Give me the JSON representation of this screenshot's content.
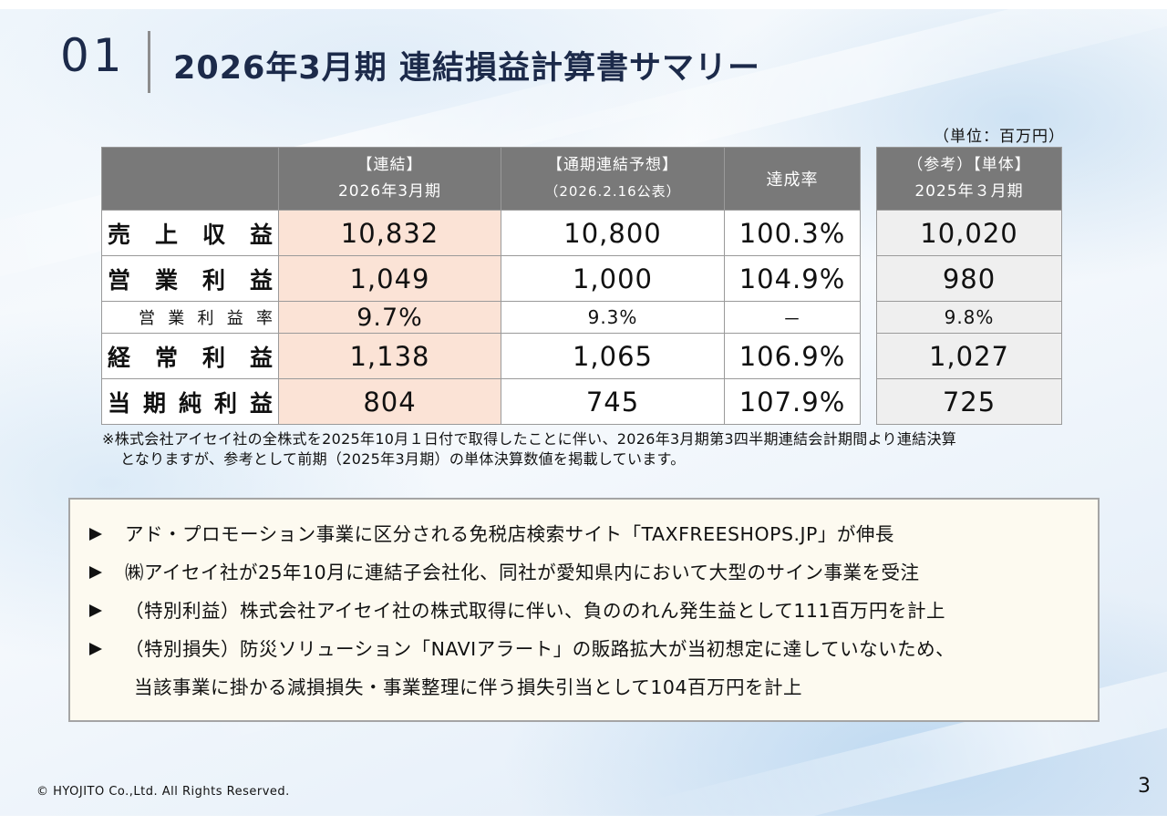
{
  "header": {
    "section_number": "01",
    "title": "2026年3月期 連結損益計算書サマリー"
  },
  "unit_label": "（単位：百万円）",
  "table": {
    "headers": {
      "consolidated_line1": "【連結】",
      "consolidated_line2": "2026年3月期",
      "forecast_line1": "【通期連結予想】",
      "forecast_line2": "（2026.2.16公表）",
      "achievement": "達成率",
      "reference_line1": "（参考）【単体】",
      "reference_line2": "2025年３月期"
    },
    "rows": [
      {
        "label": "売上収益",
        "label_chars": [
          "売",
          "上",
          "収",
          "益"
        ],
        "consolidated": "10,832",
        "forecast": "10,800",
        "rate": "100.3%",
        "reference": "10,020"
      },
      {
        "label": "営業利益",
        "label_chars": [
          "営",
          "業",
          "利",
          "益"
        ],
        "consolidated": "1,049",
        "forecast": "1,000",
        "rate": "104.9%",
        "reference": "980"
      },
      {
        "label": "営業利益率",
        "label_chars": [
          "営",
          "業",
          "利",
          "益",
          "率"
        ],
        "consolidated": "9.7%",
        "forecast": "9.3%",
        "rate": "－",
        "reference": "9.8%"
      },
      {
        "label": "経常利益",
        "label_chars": [
          "経",
          "常",
          "利",
          "益"
        ],
        "consolidated": "1,138",
        "forecast": "1,065",
        "rate": "106.9%",
        "reference": "1,027"
      },
      {
        "label": "当期純利益",
        "label_chars": [
          "当",
          "期",
          "純",
          "利",
          "益"
        ],
        "consolidated": "804",
        "forecast": "745",
        "rate": "107.9%",
        "reference": "725"
      }
    ]
  },
  "note": {
    "line1": "※株式会社アイセイ社の全株式を2025年10月１日付で取得したことに伴い、2026年3月期第3四半期連結会計期間より連結決算",
    "line2": "となりますが、参考として前期（2025年3月期）の単体決算数値を掲載しています。"
  },
  "highlights": [
    {
      "text": "アド・プロモーション事業に区分される免税店検索サイト「TAXFREESHOPS.JP」が伸長"
    },
    {
      "text": "㈱アイセイ社が25年10月に連結子会社化、同社が愛知県内において大型のサイン事業を受注"
    },
    {
      "text": "（特別利益）株式会社アイセイ社の株式取得に伴い、負ののれん発生益として111百万円を計上"
    },
    {
      "text": "（特別損失）防災ソリューション「NAVIアラート」の販路拡大が当初想定に達していないため、",
      "continuation": "当該事業に掛かる減損損失・事業整理に伴う損失引当として104百万円を計上"
    }
  ],
  "footer": {
    "copyright": "© HYOJITO Co.,Ltd. All Rights Reserved.",
    "page_number": "3"
  },
  "colors": {
    "title": "#1c2a4a",
    "header_bg": "#797979",
    "consolidated_bg": "#fbe3d6",
    "reference_bg": "#efefef",
    "box_bg": "#fdfaf0"
  }
}
